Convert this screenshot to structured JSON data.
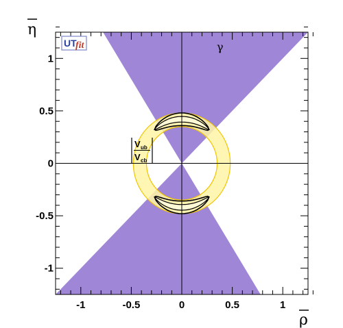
{
  "chart_data": {
    "type": "contour",
    "xlabel": "ρ",
    "ylabel": "η",
    "xlim": [
      -1.25,
      1.25
    ],
    "ylim": [
      -1.25,
      1.25
    ],
    "x_ticks": [
      -1,
      -0.5,
      0,
      0.5,
      1
    ],
    "y_ticks": [
      -1,
      -0.5,
      0,
      0.5,
      1
    ],
    "x_tick_labels": [
      "-1",
      "-0.5",
      "0",
      "0.5",
      "1"
    ],
    "y_tick_labels": [
      "-1",
      "-0.5",
      "0",
      "0.5",
      "1"
    ],
    "logo": {
      "ut": "UT",
      "fit": "fit"
    },
    "constraints": {
      "gamma": {
        "label": "γ",
        "color": "#9f86d6",
        "cone_top_x_at_eta_max": [
          -0.78,
          1.25
        ],
        "cone_bottom_x_at_eta_min": [
          -1.25,
          0.78
        ]
      },
      "vub_vcb": {
        "label_num": "V",
        "label_num_sub": "ub",
        "label_den": "V",
        "label_den_sub": "cb",
        "center": [
          0,
          0
        ],
        "r_inner": 0.35,
        "r_outer": 0.48,
        "color": "#fff5a6",
        "edge_color": "#f0c400"
      },
      "combined_regions": {
        "upper": {
          "rho_range": [
            -0.27,
            0.27
          ],
          "eta_range": [
            0.36,
            0.48
          ]
        },
        "lower": {
          "rho_range": [
            -0.27,
            0.27
          ],
          "eta_range": [
            -0.48,
            -0.36
          ]
        }
      }
    }
  }
}
